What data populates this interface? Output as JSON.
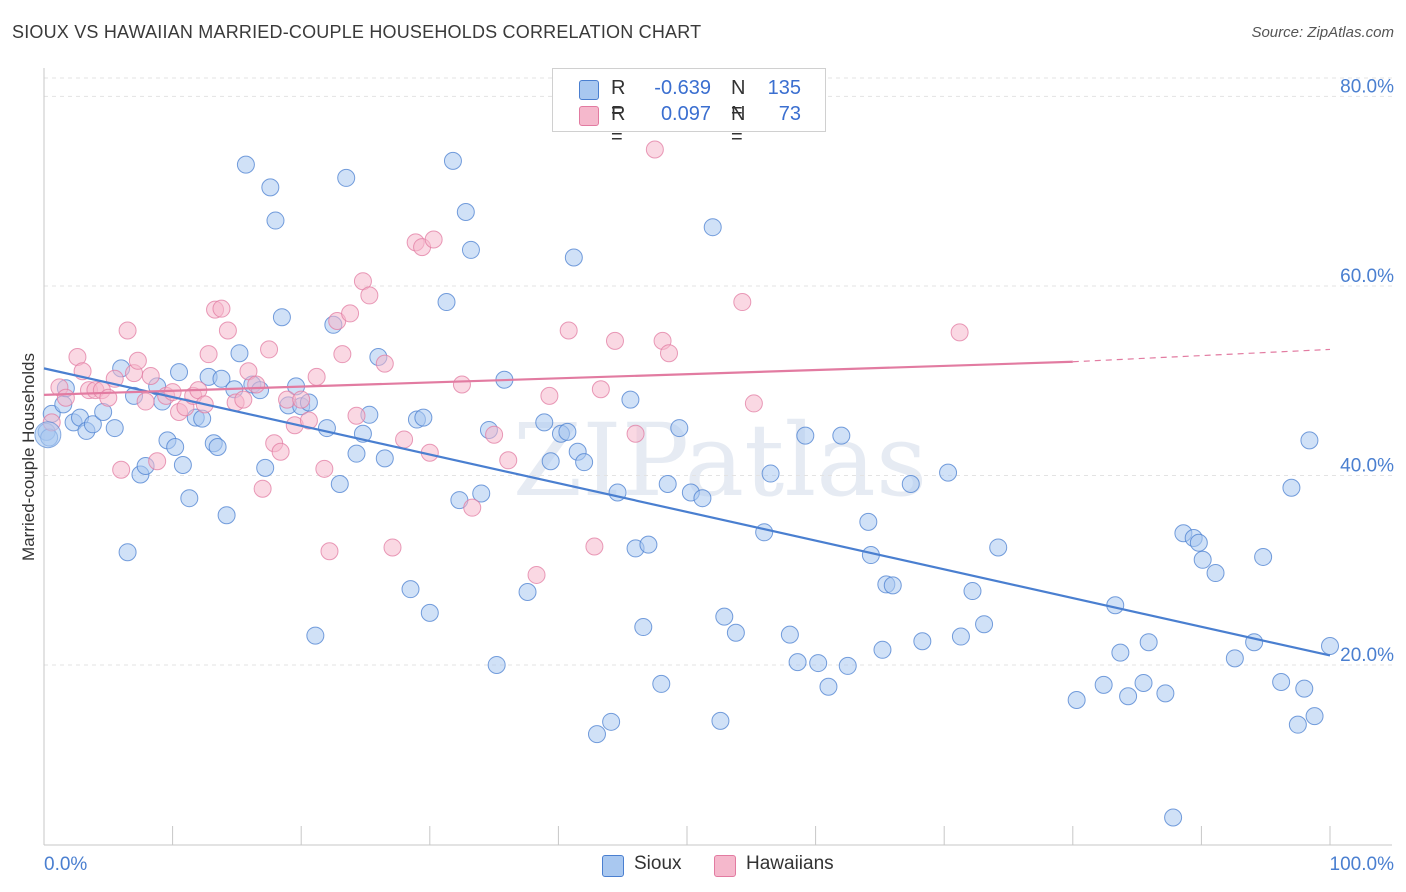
{
  "title": "SIOUX VS HAWAIIAN MARRIED-COUPLE HOUSEHOLDS CORRELATION CHART",
  "source": "Source: ZipAtlas.com",
  "watermark": "ZIPatlas",
  "legend": {
    "rows": [
      {
        "r_label": "R =",
        "r_value": "-0.639",
        "n_label": "N =",
        "n_value": "135",
        "color": "#a9c8f0"
      },
      {
        "r_label": "R =",
        "r_value": "0.097",
        "n_label": "N =",
        "n_value": "73",
        "color": "#f5b8cc"
      }
    ]
  },
  "bottom_legend": [
    {
      "label": "Sioux",
      "color": "#a9c8f0"
    },
    {
      "label": "Hawaiians",
      "color": "#f5b8cc"
    }
  ],
  "chart_data": {
    "type": "scatter",
    "title": "SIOUX VS HAWAIIAN MARRIED-COUPLE HOUSEHOLDS CORRELATION CHART",
    "xlabel": "",
    "ylabel": "Married-couple Households",
    "xlim": [
      0,
      100
    ],
    "ylim": [
      1,
      83
    ],
    "x_tick_labels": [
      "0.0%",
      "100.0%"
    ],
    "y_ticks": [
      20,
      40,
      60,
      80
    ],
    "y_tick_labels": [
      "20.0%",
      "40.0%",
      "60.0%",
      "80.0%"
    ],
    "grid": true,
    "series": [
      {
        "name": "Sioux",
        "color": "#4a7fd0",
        "fill": "#a9c8f0",
        "trend": {
          "x0": 0,
          "y0": 51.3,
          "x1": 100,
          "y1": 21.0
        },
        "points": [
          [
            0.6,
            46.5
          ],
          [
            1.5,
            47.5
          ],
          [
            1.7,
            49.2
          ],
          [
            2.3,
            45.6
          ],
          [
            2.8,
            46.1
          ],
          [
            3.3,
            44.7
          ],
          [
            3.8,
            45.4
          ],
          [
            4.6,
            46.7
          ],
          [
            5.5,
            45.0
          ],
          [
            6.0,
            51.3
          ],
          [
            6.5,
            31.9
          ],
          [
            7.0,
            48.4
          ],
          [
            7.5,
            40.1
          ],
          [
            7.9,
            41.0
          ],
          [
            8.8,
            49.4
          ],
          [
            9.2,
            47.8
          ],
          [
            9.6,
            43.7
          ],
          [
            10.2,
            43.0
          ],
          [
            10.5,
            50.9
          ],
          [
            10.8,
            41.1
          ],
          [
            11.3,
            37.6
          ],
          [
            11.8,
            46.1
          ],
          [
            12.3,
            46.0
          ],
          [
            12.8,
            50.4
          ],
          [
            13.2,
            43.4
          ],
          [
            13.5,
            43.0
          ],
          [
            13.8,
            50.2
          ],
          [
            14.2,
            35.8
          ],
          [
            14.8,
            49.1
          ],
          [
            15.2,
            52.9
          ],
          [
            15.7,
            72.8
          ],
          [
            16.2,
            49.6
          ],
          [
            16.8,
            49.0
          ],
          [
            17.2,
            40.8
          ],
          [
            17.6,
            70.4
          ],
          [
            18.0,
            66.9
          ],
          [
            18.5,
            56.7
          ],
          [
            19.0,
            47.4
          ],
          [
            19.6,
            49.4
          ],
          [
            20.0,
            47.3
          ],
          [
            20.6,
            47.7
          ],
          [
            21.1,
            23.1
          ],
          [
            22.0,
            45.0
          ],
          [
            22.5,
            55.9
          ],
          [
            23.0,
            39.1
          ],
          [
            23.5,
            71.4
          ],
          [
            24.3,
            42.3
          ],
          [
            24.8,
            44.4
          ],
          [
            25.3,
            46.4
          ],
          [
            26.0,
            52.5
          ],
          [
            26.5,
            41.8
          ],
          [
            28.5,
            28.0
          ],
          [
            29.0,
            45.9
          ],
          [
            29.5,
            46.1
          ],
          [
            30.0,
            25.5
          ],
          [
            31.3,
            58.3
          ],
          [
            31.8,
            73.2
          ],
          [
            32.3,
            37.4
          ],
          [
            32.8,
            67.8
          ],
          [
            33.2,
            63.8
          ],
          [
            34.0,
            38.1
          ],
          [
            34.6,
            44.8
          ],
          [
            35.2,
            20.0
          ],
          [
            35.8,
            50.1
          ],
          [
            37.6,
            27.7
          ],
          [
            38.9,
            45.6
          ],
          [
            39.4,
            41.5
          ],
          [
            40.2,
            44.4
          ],
          [
            40.7,
            44.6
          ],
          [
            41.2,
            63.0
          ],
          [
            41.5,
            42.5
          ],
          [
            42.0,
            41.4
          ],
          [
            43.0,
            12.7
          ],
          [
            44.1,
            14.0
          ],
          [
            44.6,
            38.2
          ],
          [
            45.6,
            48.0
          ],
          [
            46.0,
            32.3
          ],
          [
            46.6,
            24.0
          ],
          [
            47.0,
            32.7
          ],
          [
            48.0,
            18.0
          ],
          [
            48.5,
            39.1
          ],
          [
            49.4,
            45.0
          ],
          [
            50.3,
            38.2
          ],
          [
            51.2,
            37.6
          ],
          [
            52.0,
            66.2
          ],
          [
            52.6,
            14.1
          ],
          [
            52.9,
            25.1
          ],
          [
            53.8,
            23.4
          ],
          [
            56.0,
            34.0
          ],
          [
            56.5,
            40.2
          ],
          [
            58.0,
            23.2
          ],
          [
            58.6,
            20.3
          ],
          [
            59.2,
            44.2
          ],
          [
            60.2,
            20.2
          ],
          [
            61.0,
            17.7
          ],
          [
            62.0,
            44.2
          ],
          [
            62.5,
            19.9
          ],
          [
            64.1,
            35.1
          ],
          [
            64.3,
            31.6
          ],
          [
            65.2,
            21.6
          ],
          [
            65.5,
            28.5
          ],
          [
            66.0,
            28.4
          ],
          [
            67.4,
            39.1
          ],
          [
            68.3,
            22.5
          ],
          [
            70.3,
            40.3
          ],
          [
            71.3,
            23.0
          ],
          [
            72.2,
            27.8
          ],
          [
            73.1,
            24.3
          ],
          [
            74.2,
            32.4
          ],
          [
            80.3,
            16.3
          ],
          [
            82.4,
            17.9
          ],
          [
            83.3,
            26.3
          ],
          [
            83.7,
            21.3
          ],
          [
            84.3,
            16.7
          ],
          [
            85.5,
            18.1
          ],
          [
            85.9,
            22.4
          ],
          [
            87.2,
            17.0
          ],
          [
            87.8,
            3.9
          ],
          [
            88.6,
            33.9
          ],
          [
            89.4,
            33.4
          ],
          [
            89.8,
            32.9
          ],
          [
            90.1,
            31.1
          ],
          [
            91.1,
            29.7
          ],
          [
            92.6,
            20.7
          ],
          [
            94.1,
            22.4
          ],
          [
            94.8,
            31.4
          ],
          [
            96.2,
            18.2
          ],
          [
            97.0,
            38.7
          ],
          [
            97.5,
            13.7
          ],
          [
            98.0,
            17.5
          ],
          [
            98.4,
            43.7
          ],
          [
            98.8,
            14.6
          ],
          [
            100.0,
            22.0
          ],
          [
            0.2,
            44.6
          ],
          [
            0.4,
            44.0
          ]
        ]
      },
      {
        "name": "Hawaiians",
        "color": "#e27ba1",
        "fill": "#f5b8cc",
        "trend": {
          "x0": 0,
          "y0": 48.5,
          "x1": 80,
          "y1": 52.0,
          "dashed_to": {
            "x1": 100,
            "y1": 53.3
          }
        },
        "points": [
          [
            0.6,
            45.6
          ],
          [
            1.2,
            49.3
          ],
          [
            1.7,
            48.2
          ],
          [
            2.6,
            52.5
          ],
          [
            3.0,
            51.0
          ],
          [
            3.5,
            49.0
          ],
          [
            4.0,
            49.0
          ],
          [
            4.5,
            49.0
          ],
          [
            5.0,
            48.2
          ],
          [
            5.5,
            50.2
          ],
          [
            6.0,
            40.6
          ],
          [
            6.5,
            55.3
          ],
          [
            7.0,
            50.8
          ],
          [
            7.3,
            52.1
          ],
          [
            7.9,
            47.8
          ],
          [
            8.3,
            50.5
          ],
          [
            8.8,
            41.5
          ],
          [
            9.5,
            48.4
          ],
          [
            10.0,
            48.8
          ],
          [
            10.5,
            46.7
          ],
          [
            11.0,
            47.2
          ],
          [
            11.6,
            48.4
          ],
          [
            12.0,
            49.0
          ],
          [
            12.5,
            47.5
          ],
          [
            12.8,
            52.8
          ],
          [
            13.3,
            57.5
          ],
          [
            13.8,
            57.6
          ],
          [
            14.3,
            55.3
          ],
          [
            14.9,
            47.7
          ],
          [
            15.5,
            48.0
          ],
          [
            15.9,
            51.0
          ],
          [
            16.5,
            49.6
          ],
          [
            17.0,
            38.6
          ],
          [
            17.5,
            53.3
          ],
          [
            17.9,
            43.4
          ],
          [
            18.4,
            42.5
          ],
          [
            18.9,
            48.0
          ],
          [
            19.5,
            45.3
          ],
          [
            20.0,
            48.0
          ],
          [
            20.6,
            45.8
          ],
          [
            21.2,
            50.4
          ],
          [
            21.8,
            40.7
          ],
          [
            22.2,
            32.0
          ],
          [
            22.8,
            56.3
          ],
          [
            23.2,
            52.8
          ],
          [
            23.8,
            57.1
          ],
          [
            24.3,
            46.3
          ],
          [
            24.8,
            60.5
          ],
          [
            25.3,
            59.0
          ],
          [
            26.5,
            51.8
          ],
          [
            27.1,
            32.4
          ],
          [
            28.0,
            43.8
          ],
          [
            28.9,
            64.6
          ],
          [
            29.4,
            64.1
          ],
          [
            30.0,
            42.4
          ],
          [
            30.3,
            64.9
          ],
          [
            32.5,
            49.6
          ],
          [
            33.3,
            36.6
          ],
          [
            35.0,
            44.3
          ],
          [
            36.1,
            41.6
          ],
          [
            38.3,
            29.5
          ],
          [
            39.3,
            48.4
          ],
          [
            40.8,
            55.3
          ],
          [
            42.8,
            32.5
          ],
          [
            43.3,
            49.1
          ],
          [
            44.4,
            54.2
          ],
          [
            46.0,
            44.4
          ],
          [
            47.5,
            74.4
          ],
          [
            48.1,
            54.2
          ],
          [
            48.6,
            52.9
          ],
          [
            54.3,
            58.3
          ],
          [
            55.2,
            47.6
          ],
          [
            71.2,
            55.1
          ]
        ]
      }
    ]
  }
}
